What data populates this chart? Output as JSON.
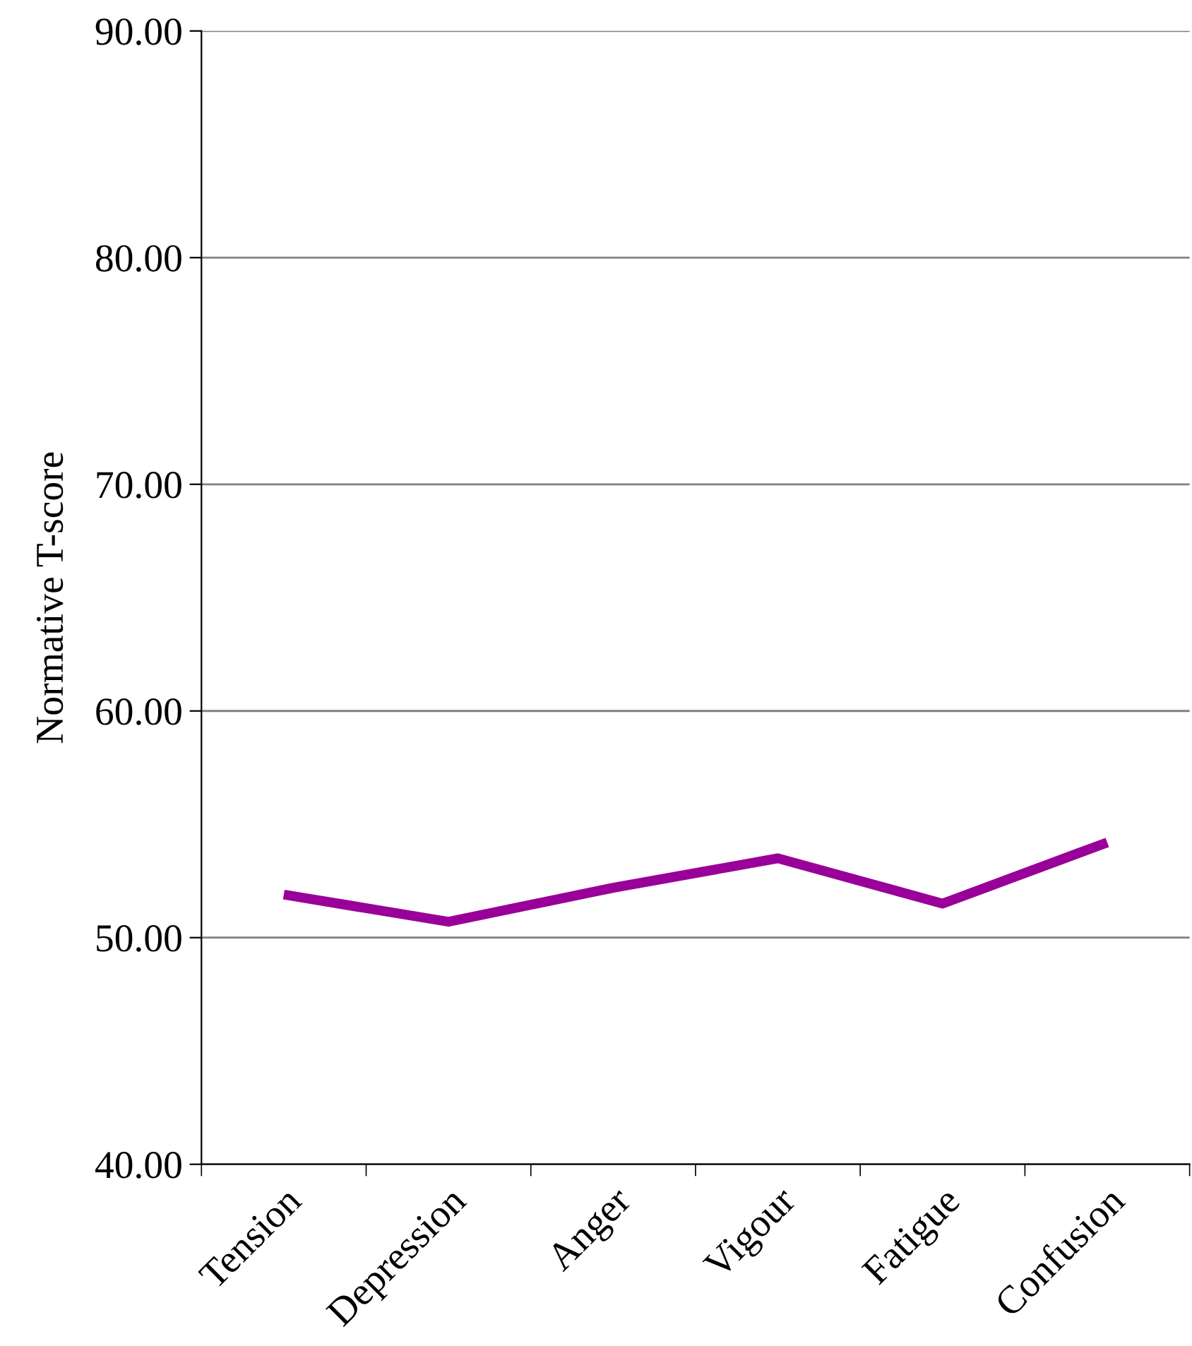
{
  "chart_data": {
    "type": "line",
    "ylabel": "Normative T-score",
    "categories": [
      "Tension",
      "Depression",
      "Anger",
      "Vigour",
      "Fatigue",
      "Confusion"
    ],
    "series": [
      {
        "color": "#990099",
        "values": [
          51.9,
          50.7,
          52.2,
          53.5,
          51.5,
          54.2
        ]
      }
    ],
    "ylim": [
      40,
      90
    ],
    "yticks": [
      {
        "value": 40,
        "label": "40.00"
      },
      {
        "value": 50,
        "label": "50.00"
      },
      {
        "value": 60,
        "label": "60.00"
      },
      {
        "value": 70,
        "label": "70.00"
      },
      {
        "value": 80,
        "label": "80.00"
      },
      {
        "value": 90,
        "label": "90.00"
      }
    ],
    "grid": "y",
    "marker": "none",
    "line_style": "solid"
  }
}
